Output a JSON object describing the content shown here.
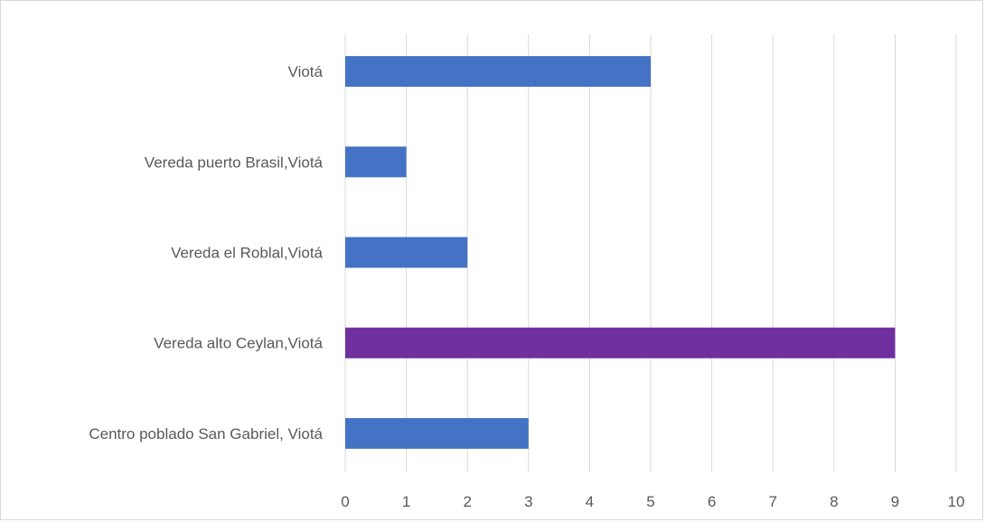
{
  "chart_data": {
    "type": "bar",
    "orientation": "horizontal",
    "categories": [
      "Viotá",
      "Vereda puerto Brasil,Viotá",
      "Vereda el Roblal,Viotá",
      "Vereda alto Ceylan,Viotá",
      "Centro poblado San Gabriel, Viotá"
    ],
    "values": [
      5,
      1,
      2,
      9,
      3
    ],
    "bar_colors": [
      "#4472c4",
      "#4472c4",
      "#4472c4",
      "#7030a0",
      "#4472c4"
    ],
    "xlim": [
      0,
      10
    ],
    "xticks": [
      "0",
      "1",
      "2",
      "3",
      "4",
      "5",
      "6",
      "7",
      "8",
      "9",
      "10"
    ],
    "grid": true,
    "legend": "none",
    "title": "",
    "xlabel": "",
    "ylabel": ""
  }
}
